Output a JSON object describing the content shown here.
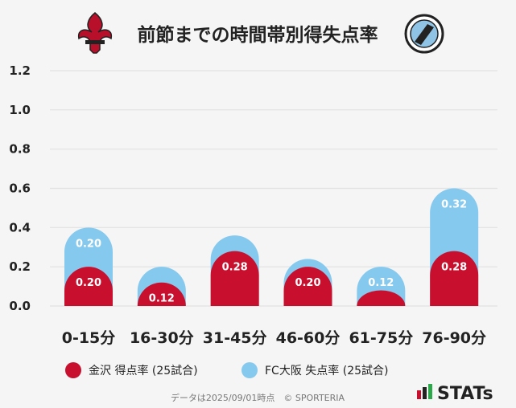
{
  "colors": {
    "kanazawa": "#c8102e",
    "osaka": "#86c9ee",
    "grid": "#e2e2e2",
    "background": "#f5f5f5"
  },
  "header": {
    "title": "前節までの時間帯別得失点率",
    "left_logo": "fleur-de-lis-crest-icon",
    "right_logo": "fc-osaka-emblem-icon"
  },
  "legend": {
    "kanazawa_label": "金沢 得点率 (25試合)",
    "osaka_label": "FC大阪 失点率 (25試合)"
  },
  "footer": {
    "note": "データは2025/09/01時点　© SPORTERIA",
    "brand": "STATs"
  },
  "chart_data": {
    "type": "bar",
    "title": "前節までの時間帯別得失点率",
    "xlabel": "",
    "ylabel": "",
    "ylim": [
      0,
      1.2
    ],
    "yticks": [
      "0.0",
      "0.2",
      "0.4",
      "0.6",
      "0.8",
      "1.0",
      "1.2"
    ],
    "grid": true,
    "legend_position": "bottom",
    "overlap": true,
    "categories": [
      "0-15分",
      "16-30分",
      "31-45分",
      "46-60分",
      "61-75分",
      "76-90分"
    ],
    "series": [
      {
        "name": "金沢 得点率 (25試合)",
        "values": [
          0.2,
          0.12,
          0.28,
          0.2,
          0.08,
          0.28
        ],
        "labels": [
          "0.20",
          "0.12",
          "0.28",
          "0.20",
          "",
          "0.28"
        ]
      },
      {
        "name": "FC大阪 失点率 (25試合)",
        "values": [
          0.4,
          0.2,
          0.36,
          0.24,
          0.2,
          0.6
        ],
        "labels": [
          "0.20",
          "",
          "",
          "",
          "0.12",
          "0.32"
        ]
      }
    ]
  }
}
